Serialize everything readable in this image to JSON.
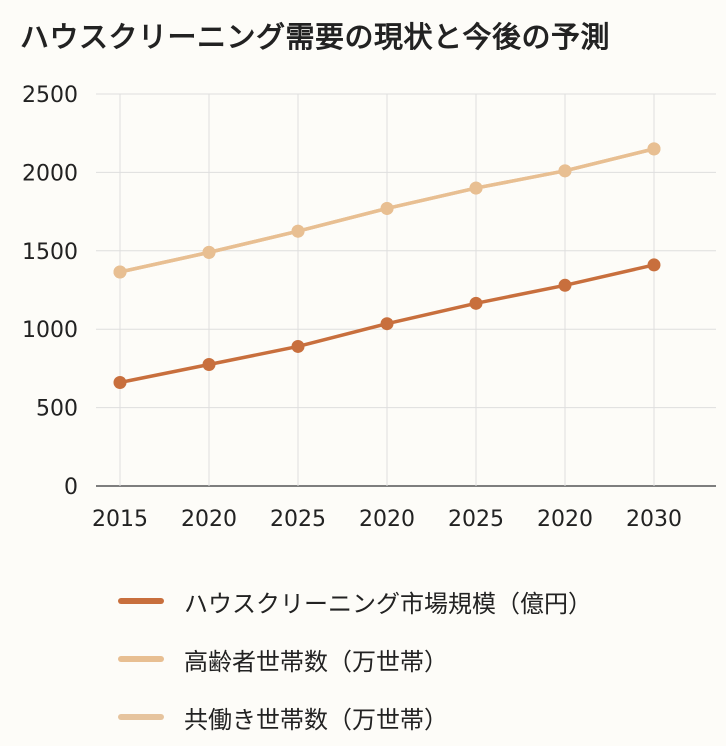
{
  "title": "ハウスクリーニング需要の現状と今後の予測",
  "chart_data": {
    "type": "line",
    "title": "ハウスクリーニング需要の現状と今後の予測",
    "categories": [
      "2015",
      "2020",
      "2025",
      "2020",
      "2025",
      "2020",
      "2030"
    ],
    "ylim": [
      0,
      2500
    ],
    "yticks": [
      "0",
      "500",
      "1000",
      "1500",
      "2000",
      "2500"
    ],
    "grid": true,
    "legend_position": "bottom",
    "series": [
      {
        "name": "ハウスクリーニング市場規模（億円）",
        "color": "#c86f3d",
        "values": [
          660,
          775,
          890,
          1035,
          1165,
          1280,
          1410
        ]
      },
      {
        "name": "高齢者世帯数（万世帯）",
        "color": "#e8bf92",
        "values": [
          1365,
          1490,
          1625,
          1770,
          1900,
          2010,
          2150
        ]
      },
      {
        "name": "共働き世帯数（万世帯）",
        "color": "#e6c49e",
        "values": [
          1365,
          1490,
          1625,
          1770,
          1900,
          2010,
          2150
        ]
      }
    ]
  }
}
